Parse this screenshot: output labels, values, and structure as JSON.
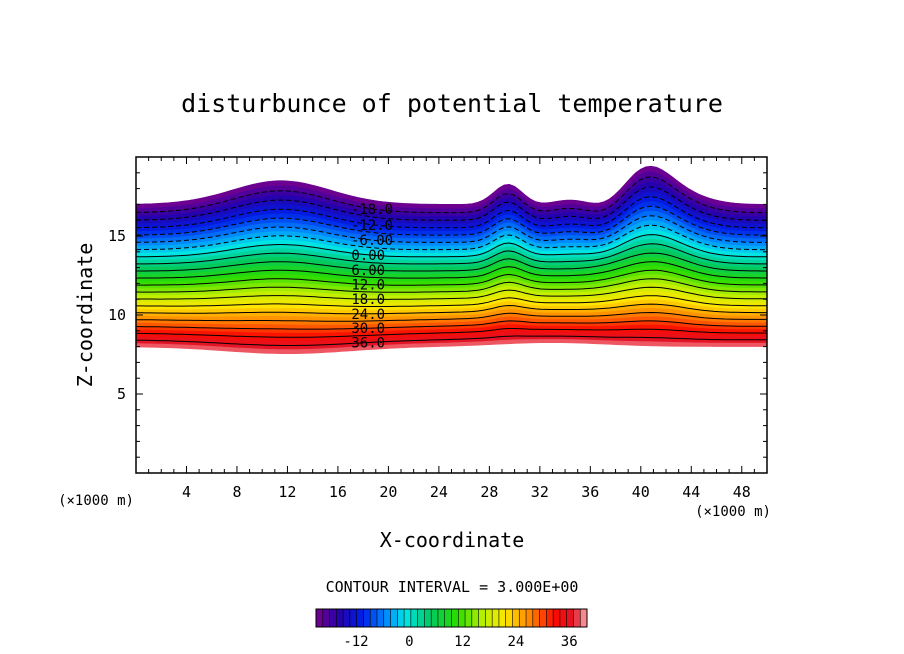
{
  "chart_data": {
    "type": "contour",
    "title": "disturbunce of potential temperature",
    "xlabel": "X-coordinate",
    "ylabel": "Z-coordinate",
    "x_unit": "(×1000 m)",
    "x_unit_right": "(×1000 m)",
    "xlim": [
      0,
      50
    ],
    "ylim": [
      0,
      20
    ],
    "xticks": [
      "4",
      "8",
      "12",
      "16",
      "20",
      "24",
      "28",
      "32",
      "36",
      "40",
      "44",
      "48"
    ],
    "yticks": [
      "5",
      "10",
      "15"
    ],
    "contour_interval_text": "CONTOUR INTERVAL = 3.000E+00",
    "contour_labels": [
      "-18.0",
      "-12.0",
      "-6.00",
      "0.00",
      "6.00",
      "12.0",
      "18.0",
      "24.0",
      "30.0",
      "36.0"
    ],
    "colorbar_ticks": [
      "-12",
      "0",
      "12",
      "24",
      "36"
    ],
    "colorbar_range": [
      -21,
      40
    ],
    "levels_min": -21,
    "levels_max": 39,
    "grid": false
  }
}
